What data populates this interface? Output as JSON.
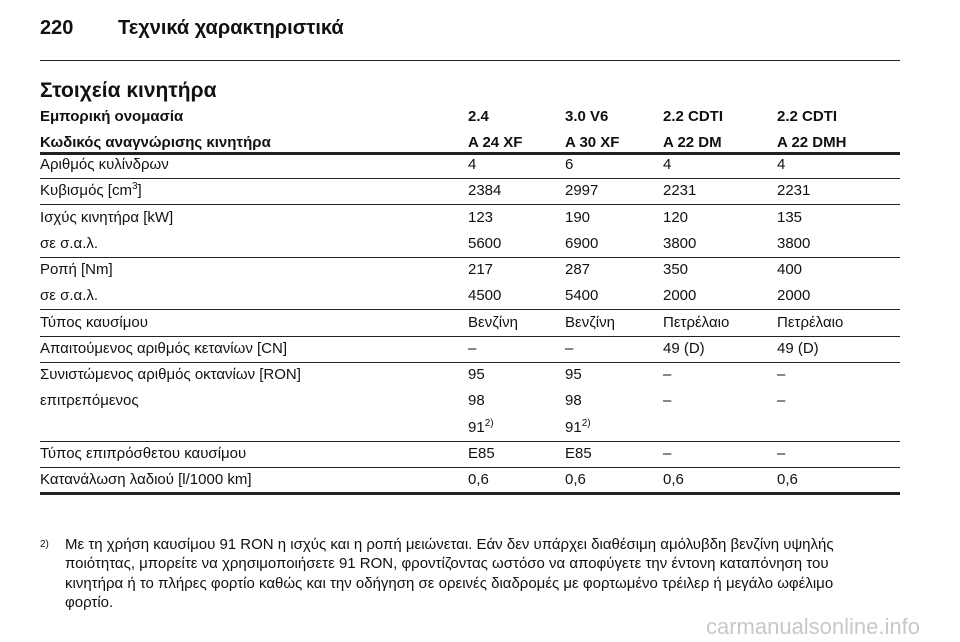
{
  "header": {
    "page_number": "220",
    "title": "Τεχνικά χαρακτηριστικά"
  },
  "section_title": "Στοιχεία κινητήρα",
  "table": {
    "head": [
      [
        "Εμπορική ονομασία",
        "2.4",
        "3.0 V6",
        "2.2 CDTI",
        "2.2 CDTI"
      ],
      [
        "Κωδικός αναγνώρισης κινητήρα",
        "A 24 XF",
        "A 30 XF",
        "A 22 DM",
        "A 22 DMH"
      ]
    ],
    "groups": [
      [
        [
          "Αριθμός κυλίνδρων",
          "4",
          "6",
          "4",
          "4"
        ]
      ],
      [
        [
          {
            "text": "Κυβισμός [cm",
            "sup": "3",
            "rest": "]"
          },
          "2384",
          "2997",
          "2231",
          "2231"
        ]
      ],
      [
        [
          "Ισχύς κινητήρα [kW]",
          "123",
          "190",
          "120",
          "135"
        ],
        [
          "σε σ.α.λ.",
          "5600",
          "6900",
          "3800",
          "3800"
        ]
      ],
      [
        [
          "Ροπή [Nm]",
          "217",
          "287",
          "350",
          "400"
        ],
        [
          "σε σ.α.λ.",
          "4500",
          "5400",
          "2000",
          "2000"
        ]
      ],
      [
        [
          "Τύπος καυσίμου",
          "Βενζίνη",
          "Βενζίνη",
          "Πετρέλαιο",
          "Πετρέλαιο"
        ]
      ],
      [
        [
          "Απαιτούμενος αριθμός κετανίων [CN]",
          "–",
          "–",
          "49 (D)",
          "49 (D)"
        ]
      ],
      [
        [
          "Συνιστώμενος αριθμός οκτανίων [RON]",
          "95",
          "95",
          "–",
          "–"
        ],
        [
          "επιτρεπόμενος",
          "98",
          "98",
          "–",
          "–"
        ],
        [
          null,
          {
            "text": "91",
            "sup": "2)"
          },
          {
            "text": "91",
            "sup": "2)"
          },
          null,
          null
        ]
      ],
      [
        [
          "Τύπος επιπρόσθετου καυσίμου",
          "E85",
          "E85",
          "–",
          "–"
        ]
      ],
      [
        [
          "Κατανάλωση λαδιού [l/1000 km]",
          "0,6",
          "0,6",
          "0,6",
          "0,6"
        ]
      ]
    ]
  },
  "footnote": {
    "marker": "2)",
    "lines": [
      "Με τη χρήση καυσίμου 91 RON η ισχύς και η ροπή μειώνεται. Εάν δεν υπάρχει διαθέσιμη αμόλυβδη βενζίνη υψηλής",
      "ποιότητας, μπορείτε να χρησιμοποιήσετε 91 RON, φροντίζοντας ωστόσο να αποφύγετε την έντονη καταπόνηση του",
      "κινητήρα ή το πλήρες φορτίο καθώς και την οδήγηση σε ορεινές διαδρομές με φορτωμένο τρέιλερ ή μεγάλο ωφέλιμο",
      "φορτίο."
    ]
  },
  "watermark": "carmanualsonline.info"
}
